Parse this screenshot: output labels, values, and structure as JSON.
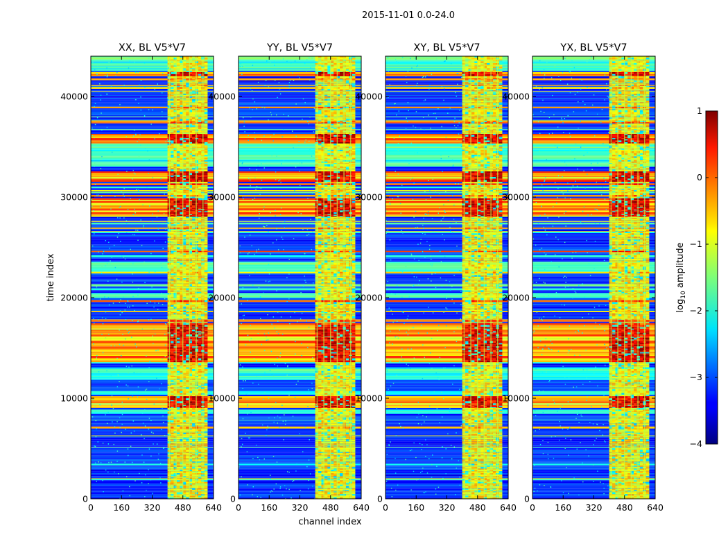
{
  "figure": {
    "suptitle": "2015-11-01 0.0-24.0"
  },
  "chart_data": {
    "type": "heatmap",
    "title": "2015-11-01 0.0-24.0",
    "xlabel": "channel index",
    "ylabel": "time index",
    "xlim": [
      0,
      640
    ],
    "ylim": [
      0,
      44000
    ],
    "xticks": [
      0,
      160,
      320,
      480,
      640
    ],
    "yticks": [
      0,
      10000,
      20000,
      30000,
      40000
    ],
    "colorbar": {
      "label": "log10 amplitude",
      "label_main": "log",
      "label_sub": "10",
      "label_rest": " amplitude",
      "range": [
        -4,
        1
      ],
      "ticks": [
        -4,
        -3,
        -2,
        -1,
        0,
        1
      ],
      "tick_labels": [
        "−4",
        "−3",
        "−2",
        "−1",
        "0",
        "1"
      ],
      "colormap": "jet"
    },
    "panels": [
      {
        "title": "XX, BL V5*V7",
        "polarization": "XX",
        "baseline": "V5*V7"
      },
      {
        "title": "YY, BL V5*V7",
        "polarization": "YY",
        "baseline": "V5*V7"
      },
      {
        "title": "XY, BL V5*V7",
        "polarization": "XY",
        "baseline": "V5*V7"
      },
      {
        "title": "YX, BL V5*V7",
        "polarization": "YX",
        "baseline": "V5*V7"
      }
    ],
    "features": {
      "rfi_band_channels": [
        410,
        600
      ],
      "rfi_columns": [
        410,
        445,
        480,
        515,
        550,
        585
      ],
      "high_power_time_bands": [
        [
          8900,
          10200
        ],
        [
          13500,
          17200
        ],
        [
          28000,
          29800
        ],
        [
          31500,
          32500
        ],
        [
          35200,
          36200
        ],
        [
          41800,
          42300
        ]
      ],
      "moderate_time_bands": [
        [
          11800,
          13000
        ],
        [
          19900,
          20400
        ],
        [
          22500,
          23500
        ],
        [
          33000,
          35200
        ],
        [
          42500,
          44000
        ]
      ]
    }
  }
}
